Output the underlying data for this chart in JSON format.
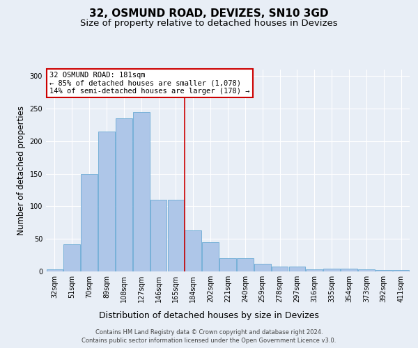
{
  "title": "32, OSMUND ROAD, DEVIZES, SN10 3GD",
  "subtitle": "Size of property relative to detached houses in Devizes",
  "xlabel": "Distribution of detached houses by size in Devizes",
  "ylabel": "Number of detached properties",
  "footer_line1": "Contains HM Land Registry data © Crown copyright and database right 2024.",
  "footer_line2": "Contains public sector information licensed under the Open Government Licence v3.0.",
  "bar_labels": [
    "32sqm",
    "51sqm",
    "70sqm",
    "89sqm",
    "108sqm",
    "127sqm",
    "146sqm",
    "165sqm",
    "184sqm",
    "202sqm",
    "221sqm",
    "240sqm",
    "259sqm",
    "278sqm",
    "297sqm",
    "316sqm",
    "335sqm",
    "354sqm",
    "373sqm",
    "392sqm",
    "411sqm"
  ],
  "bar_values": [
    3,
    42,
    150,
    215,
    235,
    245,
    110,
    110,
    63,
    45,
    20,
    20,
    12,
    7,
    7,
    3,
    4,
    4,
    3,
    2,
    2
  ],
  "bar_color": "#aec6e8",
  "bar_edgecolor": "#6aaad4",
  "background_color": "#e8eef6",
  "ylim": [
    0,
    310
  ],
  "yticks": [
    0,
    50,
    100,
    150,
    200,
    250,
    300
  ],
  "property_bin_index": 8,
  "vline_color": "#cc0000",
  "annotation_text": "32 OSMUND ROAD: 181sqm\n← 85% of detached houses are smaller (1,078)\n14% of semi-detached houses are larger (178) →",
  "annotation_box_edgecolor": "#cc0000",
  "annotation_box_facecolor": "white",
  "title_fontsize": 11,
  "subtitle_fontsize": 9.5,
  "xlabel_fontsize": 9,
  "ylabel_fontsize": 8.5,
  "tick_fontsize": 7,
  "annotation_fontsize": 7.5,
  "footer_fontsize": 6
}
